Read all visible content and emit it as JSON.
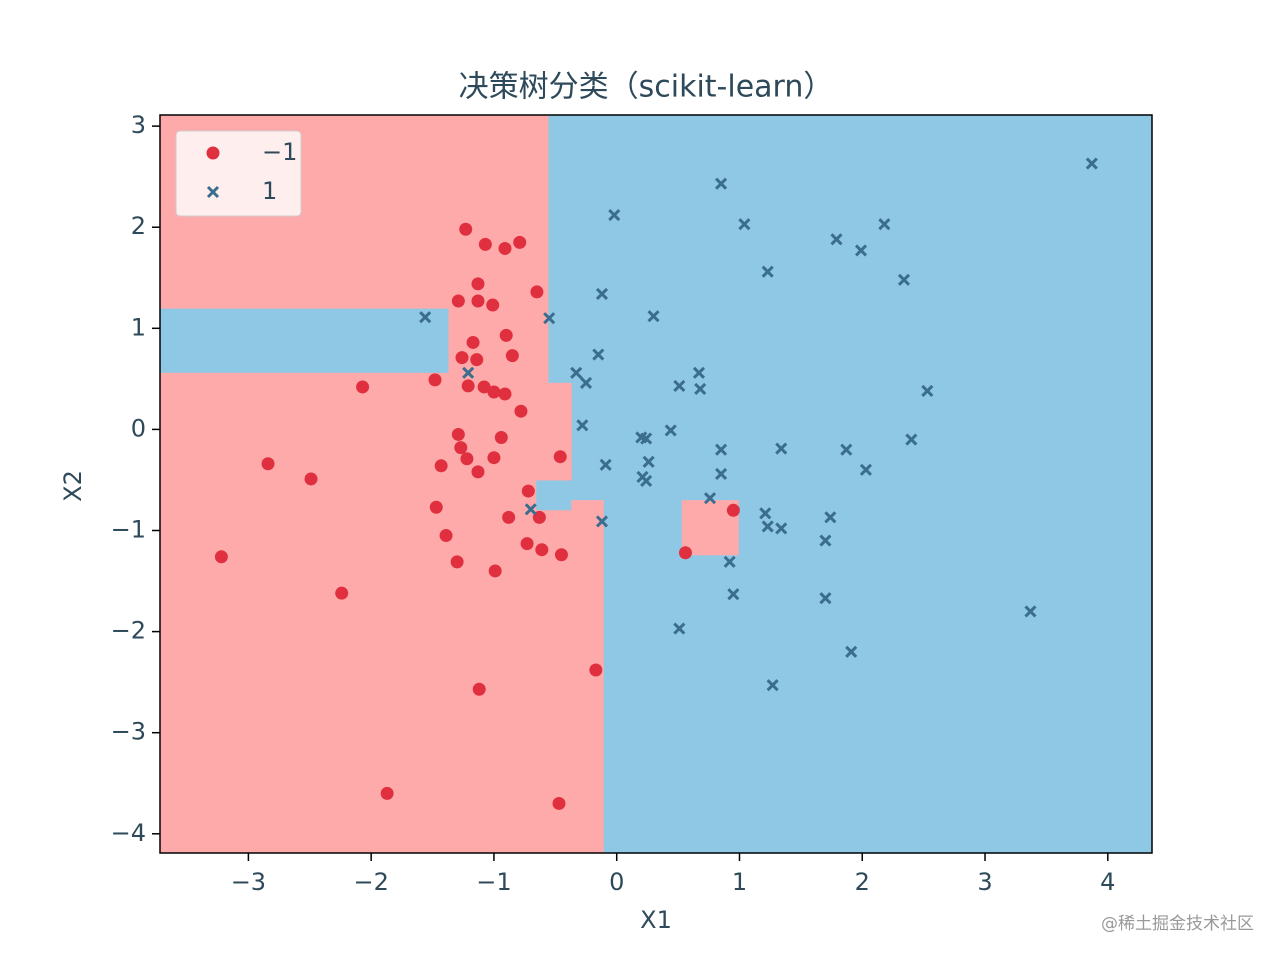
{
  "chart_data": {
    "type": "scatter",
    "title": "决策树分类（scikit-learn）",
    "x_label": "X1",
    "y_label": "X2",
    "xlim": [
      -3.72,
      4.36
    ],
    "ylim": [
      -4.19,
      3.11
    ],
    "xticks": [
      {
        "value": -3,
        "label": "−3"
      },
      {
        "value": -2,
        "label": "−2"
      },
      {
        "value": -1,
        "label": "−1"
      },
      0,
      1,
      2,
      3,
      4
    ],
    "yticks": [
      {
        "value": -4,
        "label": "−4"
      },
      {
        "value": -3,
        "label": "−3"
      },
      {
        "value": -2,
        "label": "−2"
      },
      {
        "value": -1,
        "label": "−1"
      },
      0,
      1,
      2,
      3
    ],
    "legend": "upper left",
    "background_color": "#8fc8e4",
    "regions": [
      {
        "x": [
          -3.72,
          -0.56
        ],
        "y": [
          1.2,
          3.11
        ],
        "color": "#ffaaaa"
      },
      {
        "x": [
          -1.37,
          -0.56
        ],
        "y": [
          0.56,
          1.2
        ],
        "color": "#ffaaaa"
      },
      {
        "x": [
          -3.72,
          -0.56
        ],
        "y": [
          0.46,
          0.56
        ],
        "color": "#ffaaaa"
      },
      {
        "x": [
          -3.72,
          -0.37
        ],
        "y": [
          -0.5,
          0.46
        ],
        "color": "#ffaaaa"
      },
      {
        "x": [
          -3.72,
          -0.66
        ],
        "y": [
          -0.8,
          -0.5
        ],
        "color": "#ffaaaa"
      },
      {
        "x": [
          -3.72,
          -0.37
        ],
        "y": [
          -4.19,
          -0.8
        ],
        "color": "#ffaaaa"
      },
      {
        "x": [
          -0.37,
          -0.11
        ],
        "y": [
          -4.19,
          -0.7
        ],
        "color": "#ffaaaa"
      },
      {
        "x": [
          0.53,
          0.99
        ],
        "y": [
          -1.24,
          -0.7
        ],
        "color": "#ffaaaa"
      }
    ],
    "series": [
      {
        "name": "−1",
        "color": "#e0303f",
        "marker": "o",
        "x": [
          -1.23,
          -1.07,
          -0.91,
          -0.79,
          -1.13,
          -1.29,
          -1.13,
          -1.01,
          -0.65,
          -1.17,
          -0.9,
          -1.26,
          -1.14,
          -0.85,
          -1.48,
          -2.07,
          -1.21,
          -1.08,
          -1.0,
          -0.91,
          -0.78,
          -1.29,
          -0.94,
          -1.27,
          -1.22,
          -1.0,
          -0.46,
          -1.43,
          -1.13,
          -2.84,
          -2.49,
          -0.72,
          -1.47,
          -0.88,
          -0.63,
          0.95,
          -1.39,
          -0.73,
          -0.61,
          -0.45,
          0.56,
          -1.3,
          -0.99,
          -3.22,
          -2.24,
          -0.17,
          -1.12,
          -1.87,
          -0.47
        ],
        "values": [
          1.98,
          1.83,
          1.79,
          1.85,
          1.44,
          1.27,
          1.27,
          1.23,
          1.36,
          0.86,
          0.93,
          0.71,
          0.69,
          0.73,
          0.49,
          0.42,
          0.43,
          0.42,
          0.37,
          0.35,
          0.18,
          -0.05,
          -0.08,
          -0.18,
          -0.29,
          -0.28,
          -0.27,
          -0.36,
          -0.42,
          -0.34,
          -0.49,
          -0.61,
          -0.77,
          -0.87,
          -0.87,
          -0.8,
          -1.05,
          -1.13,
          -1.19,
          -1.24,
          -1.22,
          -1.31,
          -1.4,
          -1.26,
          -1.62,
          -2.38,
          -2.57,
          -3.6,
          -3.7
        ]
      },
      {
        "name": "1",
        "color": "#3b6e8e",
        "marker": "x",
        "x": [
          3.87,
          0.85,
          -0.02,
          1.04,
          2.18,
          1.79,
          1.99,
          1.23,
          2.34,
          -0.12,
          0.3,
          -1.56,
          -0.55,
          -0.15,
          -1.21,
          -0.33,
          0.67,
          -0.25,
          0.51,
          0.68,
          2.53,
          -0.28,
          0.44,
          0.2,
          0.24,
          2.4,
          0.85,
          1.34,
          1.87,
          -0.09,
          0.26,
          2.03,
          0.85,
          0.21,
          0.24,
          0.76,
          -0.7,
          1.21,
          1.74,
          -0.12,
          1.23,
          1.34,
          1.7,
          0.92,
          0.95,
          1.7,
          0.51,
          1.91,
          3.37,
          1.27
        ],
        "values": [
          2.63,
          2.43,
          2.12,
          2.03,
          2.03,
          1.88,
          1.77,
          1.56,
          1.48,
          1.34,
          1.12,
          1.11,
          1.1,
          0.74,
          0.56,
          0.56,
          0.56,
          0.46,
          0.43,
          0.4,
          0.38,
          0.04,
          -0.01,
          -0.08,
          -0.09,
          -0.1,
          -0.2,
          -0.19,
          -0.2,
          -0.35,
          -0.32,
          -0.4,
          -0.44,
          -0.47,
          -0.51,
          -0.68,
          -0.79,
          -0.83,
          -0.87,
          -0.91,
          -0.96,
          -0.98,
          -1.1,
          -1.31,
          -1.63,
          -1.67,
          -1.97,
          -2.2,
          -1.8,
          -2.53
        ]
      }
    ],
    "watermark": "@稀土掘金技术社区"
  }
}
